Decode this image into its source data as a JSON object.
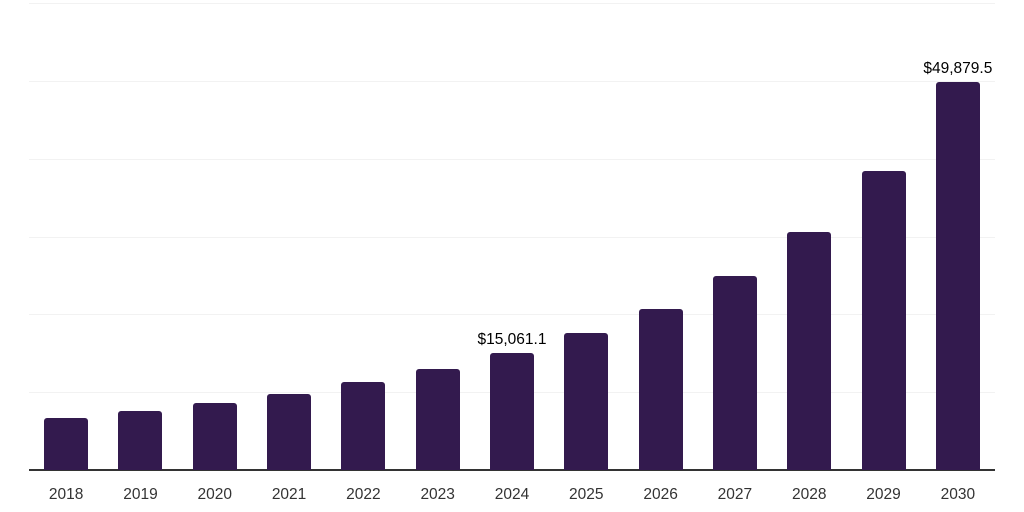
{
  "chart_data": {
    "type": "bar",
    "title": "",
    "xlabel": "",
    "ylabel": "",
    "categories": [
      "2018",
      "2019",
      "2020",
      "2021",
      "2022",
      "2023",
      "2024",
      "2025",
      "2026",
      "2027",
      "2028",
      "2029",
      "2030"
    ],
    "values": [
      6700,
      7580,
      8610,
      9760,
      11310,
      12980,
      15061.1,
      17600,
      20690,
      24930,
      30580,
      38420,
      49879.5
    ],
    "point_labels": [
      null,
      null,
      null,
      null,
      null,
      null,
      "$15,061.1",
      null,
      null,
      null,
      null,
      null,
      "$49,879.5"
    ],
    "ylim": [
      0,
      60000
    ],
    "gridline_values": [
      10000,
      20000,
      30000,
      40000,
      50000,
      60000
    ],
    "grid": "horizontal-only",
    "legend": "none",
    "colors": {
      "bar": "#331a4e",
      "gridline": "#f2f2f2",
      "axis_line": "#333333",
      "tick_label": "#333333",
      "data_label": "#000000",
      "background": "#ffffff"
    }
  }
}
